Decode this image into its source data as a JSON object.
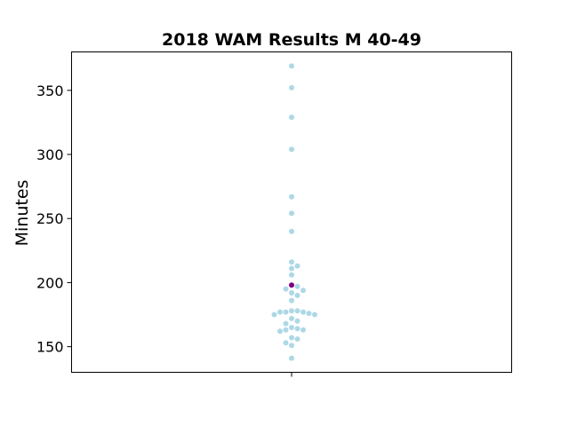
{
  "chart_data": {
    "type": "scatter",
    "title": "2018 WAM Results M 40-49",
    "xlabel": "",
    "ylabel": "Minutes",
    "ylim": [
      130,
      380
    ],
    "yticks": [
      150,
      200,
      250,
      300,
      350
    ],
    "grid": false,
    "colors": {
      "points": "#add8e6",
      "highlight": "#800080"
    },
    "series": [
      {
        "values": [
          369,
          352,
          329,
          304,
          267,
          254,
          240,
          216,
          213,
          211,
          206,
          197,
          195,
          194,
          192,
          190,
          186,
          178,
          178,
          177,
          177,
          177,
          176,
          175,
          175,
          172,
          170,
          168,
          165,
          164,
          163,
          163,
          162,
          157,
          156,
          153,
          151,
          141
        ]
      }
    ],
    "highlight": {
      "value": 198
    }
  }
}
